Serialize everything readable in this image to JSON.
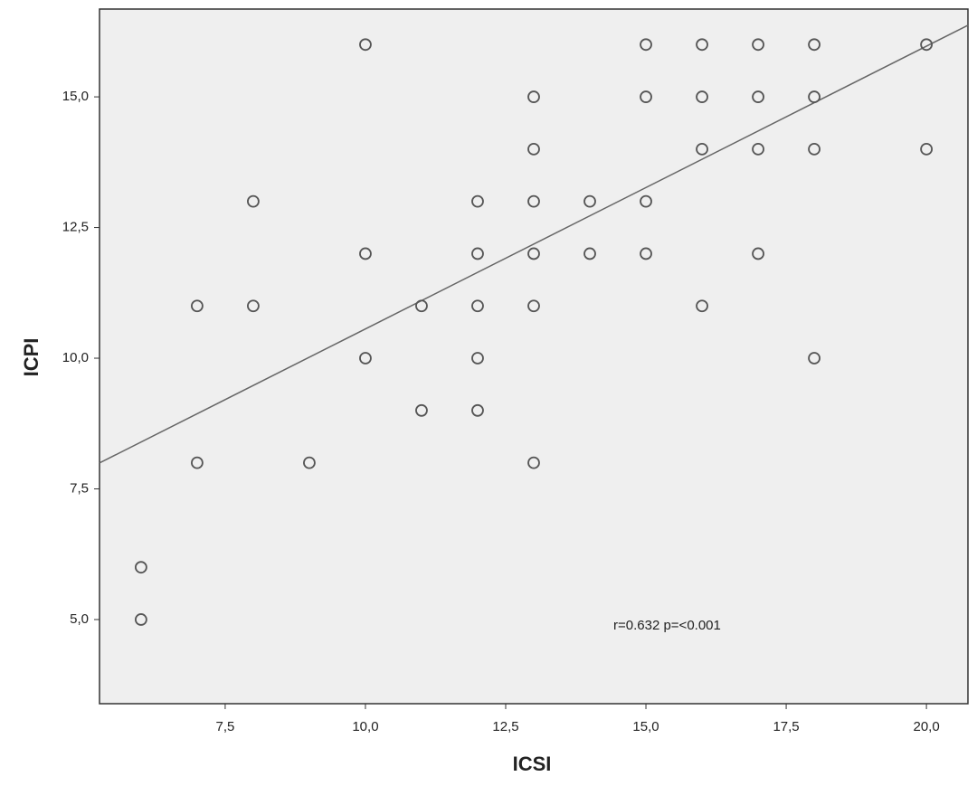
{
  "chart_data": {
    "type": "scatter",
    "x_label": "ICSI",
    "y_label": "ICPI",
    "annotation": "r=0.632 p=<0.001",
    "x": [
      6,
      6,
      7,
      7,
      8,
      8,
      9,
      10,
      10,
      10,
      11,
      11,
      12,
      12,
      12,
      12,
      12,
      13,
      13,
      13,
      13,
      13,
      13,
      14,
      14,
      15,
      15,
      15,
      15,
      16,
      16,
      16,
      16,
      17,
      17,
      17,
      17,
      18,
      18,
      18,
      18,
      20,
      20
    ],
    "y": [
      6,
      5,
      11,
      8,
      13,
      11,
      8,
      16,
      12,
      10,
      11,
      9,
      13,
      12,
      11,
      10,
      9,
      15,
      14,
      13,
      12,
      11,
      8,
      13,
      12,
      16,
      15,
      13,
      12,
      16,
      15,
      14,
      11,
      16,
      15,
      14,
      12,
      16,
      15,
      14,
      10,
      16,
      14
    ],
    "color": "#555555",
    "trend_line": {
      "slope": 0.541,
      "intercept": 5.15,
      "color": "#666666"
    },
    "xlim": [
      5.26,
      20.74
    ],
    "ylim": [
      3.39,
      16.68
    ],
    "xticks": [
      {
        "value": 7.5,
        "label": "7,5"
      },
      {
        "value": 10,
        "label": "10,0"
      },
      {
        "value": 12.5,
        "label": "12,5"
      },
      {
        "value": 15,
        "label": "15,0"
      },
      {
        "value": 17.5,
        "label": "17,5"
      },
      {
        "value": 20,
        "label": "20,0"
      }
    ],
    "yticks": [
      {
        "value": 5,
        "label": "5,0"
      },
      {
        "value": 7.5,
        "label": "7,5"
      },
      {
        "value": 10,
        "label": "10,0"
      },
      {
        "value": 12.5,
        "label": "12,5"
      },
      {
        "value": 15,
        "label": "15,0"
      }
    ]
  }
}
